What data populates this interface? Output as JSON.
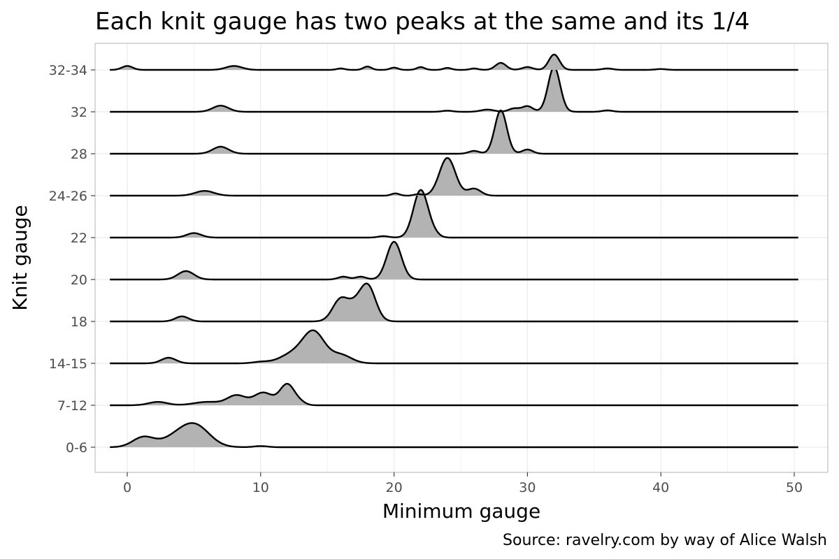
{
  "chart_data": {
    "type": "ridgeline",
    "title": "Each knit gauge has two peaks at the same and its 1/4",
    "xlabel": "Minimum gauge",
    "ylabel": "Knit gauge",
    "caption": "Source: ravelry.com by way of Alice Walsh",
    "xlim": [
      -2.4,
      52.5
    ],
    "xticks": [
      0,
      10,
      20,
      30,
      40,
      50
    ],
    "grid": true,
    "fill_color": "#b3b3b3",
    "line_color": "#000000",
    "categories": [
      "0-6",
      "7-12",
      "14-15",
      "18",
      "20",
      "22",
      "24-26",
      "28",
      "32",
      "32-34"
    ],
    "series": [
      {
        "category": "0-6",
        "peaks": [
          [
            1.2,
            0.35,
            0.8
          ],
          [
            4.3,
            0.55,
            1.3
          ],
          [
            5.3,
            0.4,
            1.0
          ],
          [
            10.0,
            0.04,
            0.5
          ]
        ]
      },
      {
        "category": "7-12",
        "peaks": [
          [
            2.3,
            0.12,
            0.7
          ],
          [
            6.0,
            0.12,
            1.0
          ],
          [
            8.2,
            0.35,
            0.7
          ],
          [
            10.2,
            0.45,
            0.7
          ],
          [
            12.0,
            0.75,
            0.55
          ],
          [
            13.0,
            0.08,
            0.4
          ]
        ]
      },
      {
        "category": "14-15",
        "peaks": [
          [
            3.1,
            0.2,
            0.55
          ],
          [
            10.0,
            0.05,
            0.6
          ],
          [
            12.5,
            0.35,
            1.0
          ],
          [
            14.0,
            1.05,
            0.8
          ],
          [
            16.0,
            0.3,
            0.8
          ]
        ]
      },
      {
        "category": "18",
        "peaks": [
          [
            4.1,
            0.18,
            0.5
          ],
          [
            16.0,
            0.8,
            0.6
          ],
          [
            17.0,
            0.35,
            0.5
          ],
          [
            18.0,
            1.3,
            0.6
          ]
        ]
      },
      {
        "category": "20",
        "peaks": [
          [
            4.4,
            0.3,
            0.6
          ],
          [
            16.2,
            0.1,
            0.4
          ],
          [
            17.5,
            0.1,
            0.4
          ],
          [
            20.0,
            1.35,
            0.55
          ]
        ]
      },
      {
        "category": "22",
        "peaks": [
          [
            5.0,
            0.16,
            0.55
          ],
          [
            19.2,
            0.05,
            0.4
          ],
          [
            22.0,
            1.7,
            0.55
          ],
          [
            23.0,
            0.1,
            0.4
          ]
        ]
      },
      {
        "category": "24-26",
        "peaks": [
          [
            5.8,
            0.17,
            0.7
          ],
          [
            20.1,
            0.08,
            0.3
          ],
          [
            21.8,
            0.05,
            0.3
          ],
          [
            24.0,
            1.35,
            0.6
          ],
          [
            26.0,
            0.25,
            0.5
          ]
        ]
      },
      {
        "category": "28",
        "peaks": [
          [
            7.0,
            0.25,
            0.6
          ],
          [
            26.0,
            0.1,
            0.4
          ],
          [
            28.0,
            1.55,
            0.45
          ],
          [
            30.0,
            0.15,
            0.4
          ]
        ]
      },
      {
        "category": "32",
        "peaks": [
          [
            7.0,
            0.22,
            0.6
          ],
          [
            24.0,
            0.04,
            0.4
          ],
          [
            27.0,
            0.08,
            0.5
          ],
          [
            29.0,
            0.12,
            0.4
          ],
          [
            30.0,
            0.2,
            0.4
          ],
          [
            32.0,
            1.6,
            0.45
          ],
          [
            36.0,
            0.05,
            0.4
          ]
        ]
      },
      {
        "category": "32-34",
        "peaks": [
          [
            0.0,
            0.14,
            0.4
          ],
          [
            8.0,
            0.14,
            0.6
          ],
          [
            16.0,
            0.05,
            0.3
          ],
          [
            18.0,
            0.12,
            0.3
          ],
          [
            20.0,
            0.08,
            0.3
          ],
          [
            22.0,
            0.1,
            0.3
          ],
          [
            24.0,
            0.07,
            0.3
          ],
          [
            26.0,
            0.05,
            0.3
          ],
          [
            28.0,
            0.25,
            0.4
          ],
          [
            30.0,
            0.1,
            0.4
          ],
          [
            32.0,
            0.55,
            0.4
          ],
          [
            36.0,
            0.05,
            0.4
          ],
          [
            40.0,
            0.03,
            0.4
          ]
        ]
      }
    ]
  }
}
